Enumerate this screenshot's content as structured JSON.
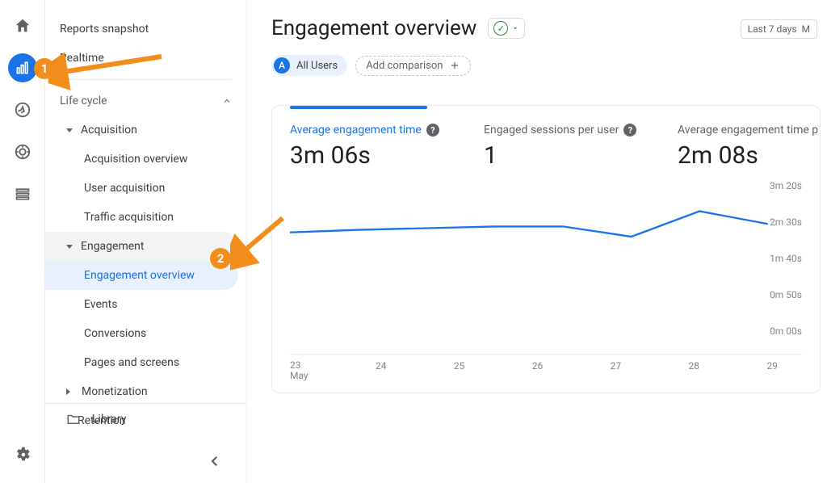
{
  "rail": {
    "items": [
      "home",
      "reports",
      "explore",
      "advertising",
      "configure"
    ]
  },
  "sidebar": {
    "top_links": [
      "Reports snapshot",
      "Realtime"
    ],
    "section": "Life cycle",
    "acquisition": {
      "label": "Acquisition",
      "items": [
        "Acquisition overview",
        "User acquisition",
        "Traffic acquisition"
      ]
    },
    "engagement": {
      "label": "Engagement",
      "items": [
        "Engagement overview",
        "Events",
        "Conversions",
        "Pages and screens"
      ],
      "active_index": 0
    },
    "monetization": {
      "label": "Monetization"
    },
    "retention": {
      "label": "Retention"
    },
    "library": "Library"
  },
  "header": {
    "title": "Engagement overview",
    "date_range": "Last 7 days",
    "all_users_letter": "A",
    "all_users_label": "All Users",
    "add_comparison": "Add comparison"
  },
  "card": {
    "metrics": [
      {
        "label": "Average engagement time",
        "value": "3m 06s",
        "help": true,
        "active": true
      },
      {
        "label": "Engaged sessions per user",
        "value": "1",
        "help": true,
        "active": false
      },
      {
        "label": "Average engagement time p",
        "value": "2m 08s",
        "help": false,
        "active": false
      }
    ],
    "chart": {
      "type": "line",
      "line_color": "#1a73e8",
      "line_width": 2,
      "background_color": "#ffffff",
      "grid_color": "#e8eaed",
      "ylim_seconds": [
        0,
        200
      ],
      "y_ticks": [
        "3m 20s",
        "2m 30s",
        "1m 40s",
        "0m 50s",
        "0m 00s"
      ],
      "y_tick_positions_pct": [
        0,
        25,
        50,
        75,
        100
      ],
      "x_ticks": [
        "23",
        "24",
        "25",
        "26",
        "27",
        "28",
        "29"
      ],
      "x_sublabel": "May",
      "points_seconds": [
        145,
        148,
        150,
        152,
        152,
        140,
        170,
        155
      ]
    }
  },
  "annotations": {
    "badge1": "1",
    "badge2": "2",
    "arrow_color": "#f28c1a"
  }
}
